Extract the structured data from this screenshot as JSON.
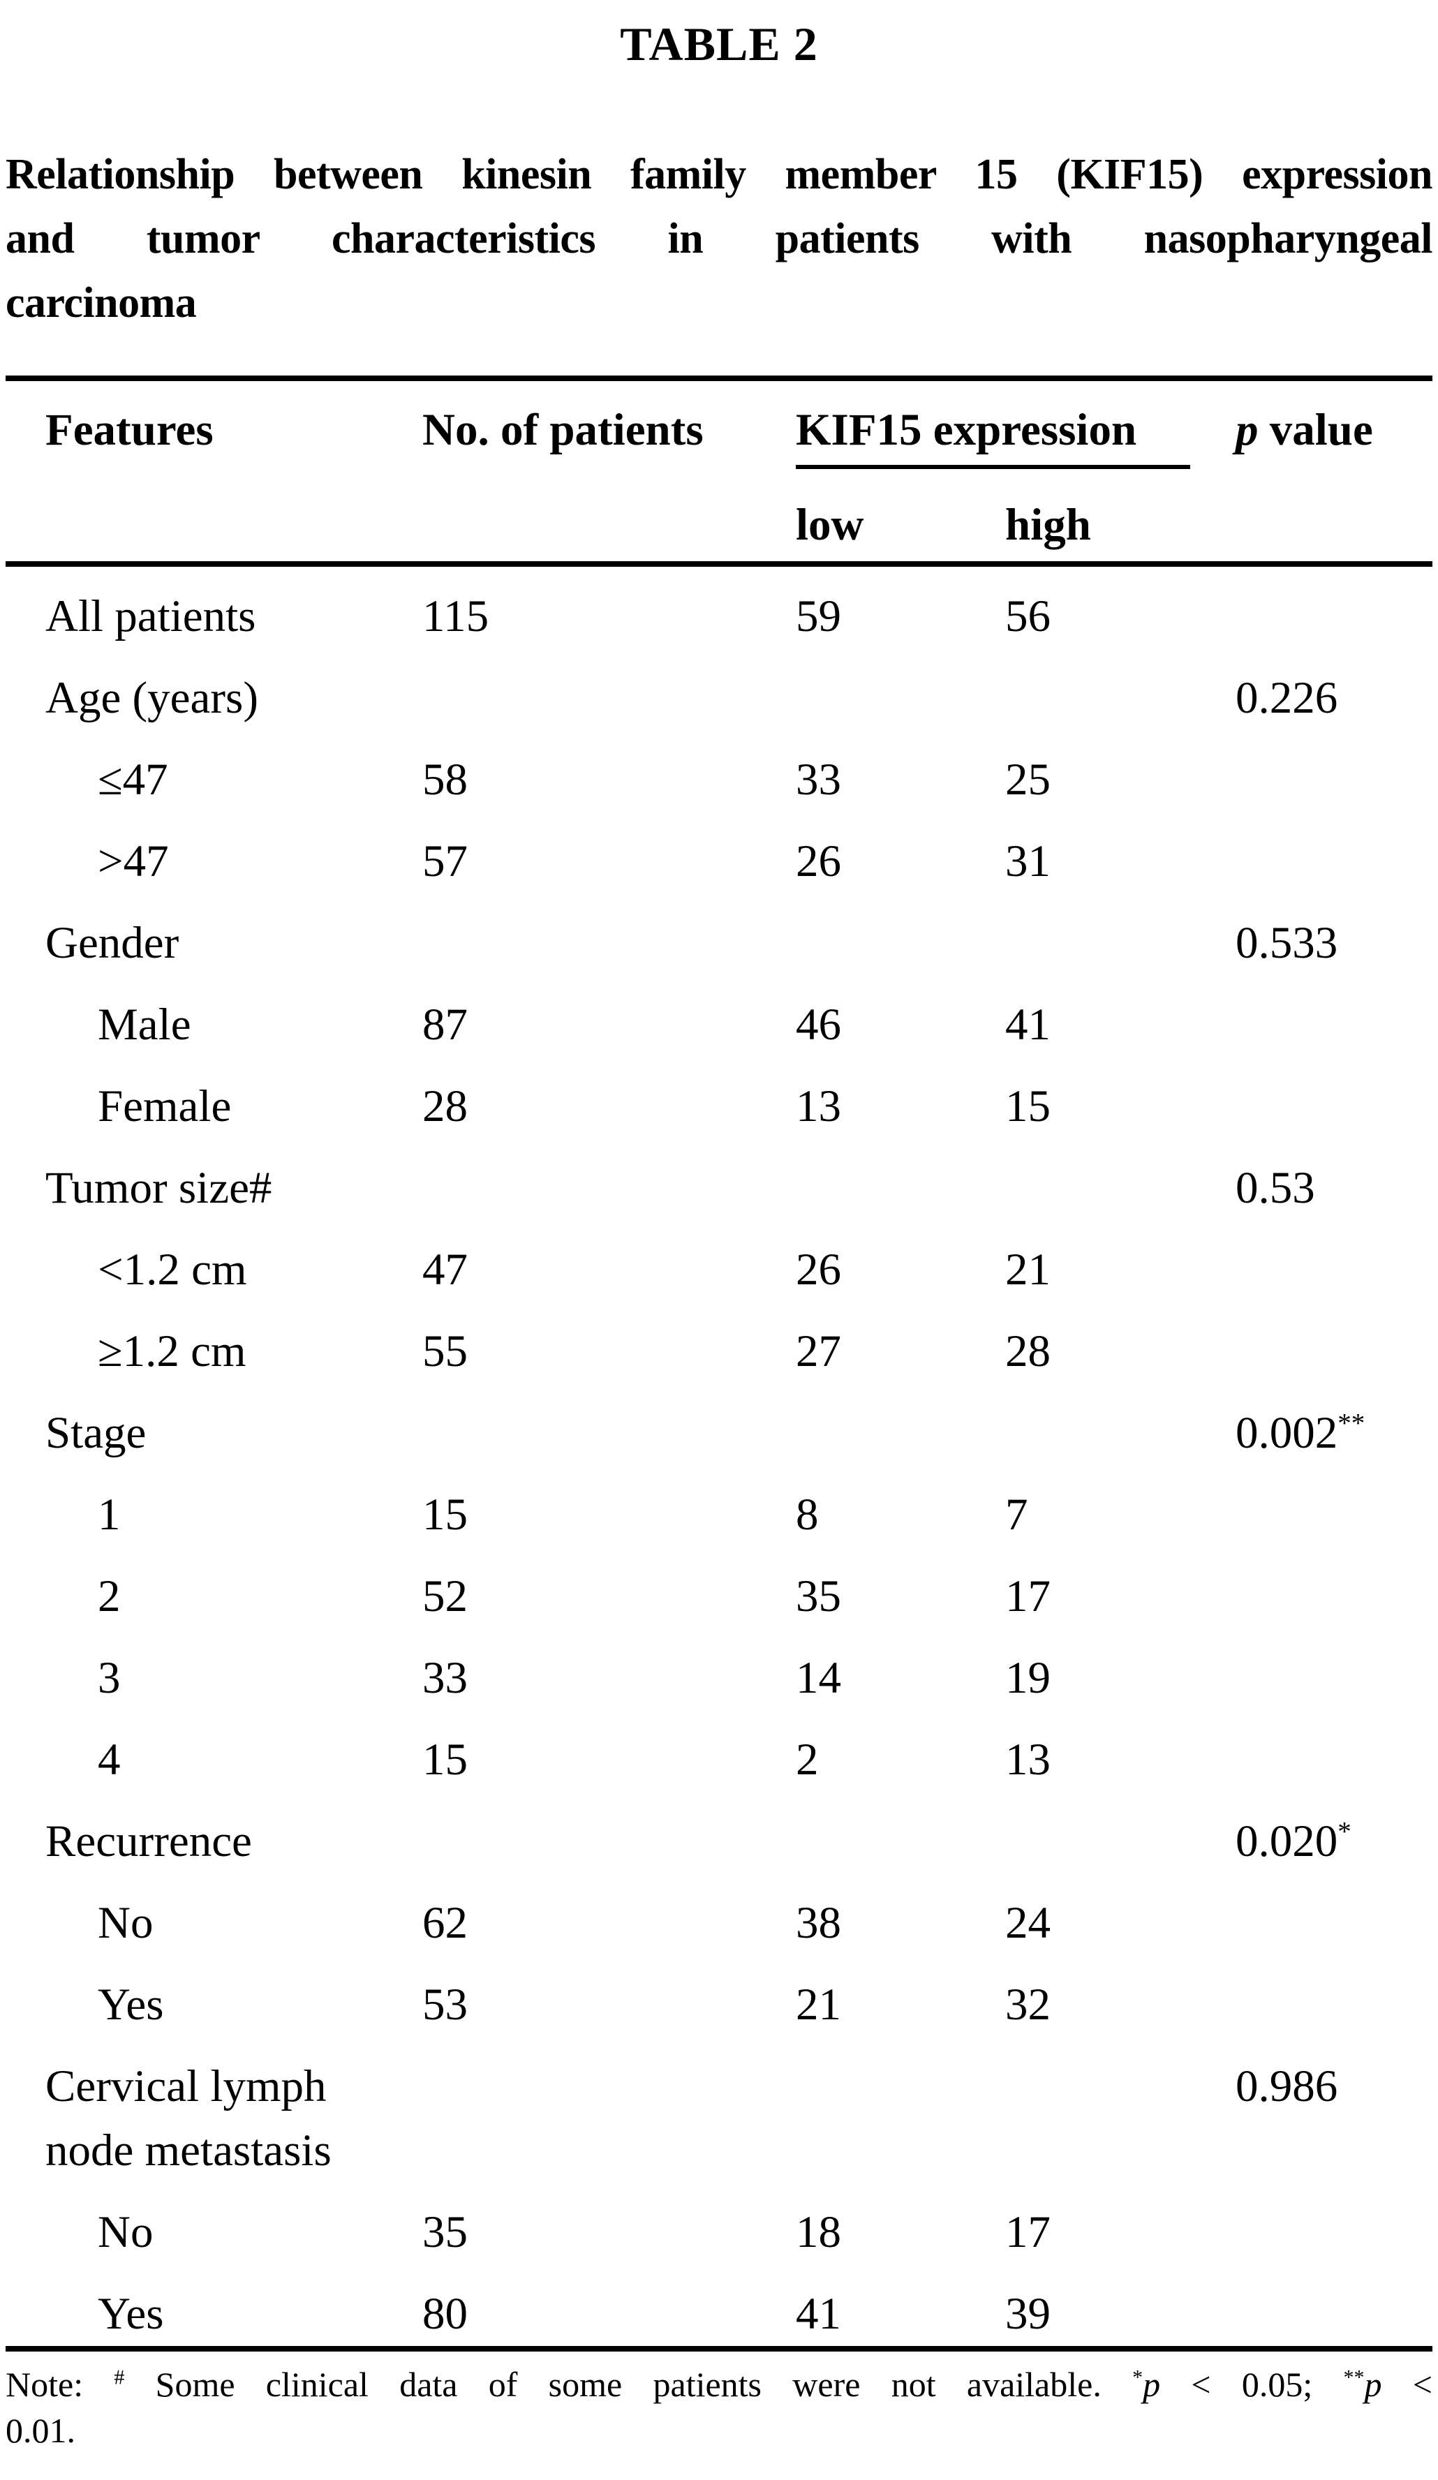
{
  "title": "TABLE 2",
  "caption": {
    "line1": "Relationship between kinesin family member 15 (KIF15) expression",
    "line2": "and tumor characteristics in patients with nasopharyngeal",
    "line3": "carcinoma"
  },
  "table": {
    "headers": {
      "features": "Features",
      "patients": "No. of patients",
      "kif15_group": "KIF15 expression",
      "p_italic": "p",
      "p_rest": " value",
      "low": "low",
      "high": "high"
    },
    "rows": [
      {
        "label": "All patients",
        "indent": false,
        "patients": "115",
        "low": "59",
        "high": "56",
        "p": "",
        "p_sup": ""
      },
      {
        "label": "Age (years)",
        "indent": false,
        "patients": "",
        "low": "",
        "high": "",
        "p": "0.226",
        "p_sup": ""
      },
      {
        "label": "≤47",
        "indent": true,
        "patients": "58",
        "low": "33",
        "high": "25",
        "p": "",
        "p_sup": ""
      },
      {
        "label": ">47",
        "indent": true,
        "patients": "57",
        "low": "26",
        "high": "31",
        "p": "",
        "p_sup": ""
      },
      {
        "label": "Gender",
        "indent": false,
        "patients": "",
        "low": "",
        "high": "",
        "p": "0.533",
        "p_sup": ""
      },
      {
        "label": "Male",
        "indent": true,
        "patients": "87",
        "low": "46",
        "high": "41",
        "p": "",
        "p_sup": ""
      },
      {
        "label": "Female",
        "indent": true,
        "patients": "28",
        "low": "13",
        "high": "15",
        "p": "",
        "p_sup": ""
      },
      {
        "label": "Tumor size#",
        "indent": false,
        "patients": "",
        "low": "",
        "high": "",
        "p": "0.53",
        "p_sup": ""
      },
      {
        "label": "<1.2 cm",
        "indent": true,
        "patients": "47",
        "low": "26",
        "high": "21",
        "p": "",
        "p_sup": ""
      },
      {
        "label": "≥1.2 cm",
        "indent": true,
        "patients": "55",
        "low": "27",
        "high": "28",
        "p": "",
        "p_sup": ""
      },
      {
        "label": "Stage",
        "indent": false,
        "patients": "",
        "low": "",
        "high": "",
        "p": "0.002",
        "p_sup": "**"
      },
      {
        "label": "1",
        "indent": true,
        "patients": "15",
        "low": "8",
        "high": "7",
        "p": "",
        "p_sup": ""
      },
      {
        "label": "2",
        "indent": true,
        "patients": "52",
        "low": "35",
        "high": "17",
        "p": "",
        "p_sup": ""
      },
      {
        "label": "3",
        "indent": true,
        "patients": "33",
        "low": "14",
        "high": "19",
        "p": "",
        "p_sup": ""
      },
      {
        "label": "4",
        "indent": true,
        "patients": "15",
        "low": "2",
        "high": "13",
        "p": "",
        "p_sup": ""
      },
      {
        "label": "Recurrence",
        "indent": false,
        "patients": "",
        "low": "",
        "high": "",
        "p": "0.020",
        "p_sup": "*"
      },
      {
        "label": "No",
        "indent": true,
        "patients": "62",
        "low": "38",
        "high": "24",
        "p": "",
        "p_sup": ""
      },
      {
        "label": "Yes",
        "indent": true,
        "patients": "53",
        "low": "21",
        "high": "32",
        "p": "",
        "p_sup": ""
      },
      {
        "label": "Cervical lymph node metastasis",
        "indent": false,
        "patients": "",
        "low": "",
        "high": "",
        "p": "0.986",
        "p_sup": ""
      },
      {
        "label": "No",
        "indent": true,
        "patients": "35",
        "low": "18",
        "high": "17",
        "p": "",
        "p_sup": ""
      },
      {
        "label": "Yes",
        "indent": true,
        "patients": "80",
        "low": "41",
        "high": "39",
        "p": "",
        "p_sup": ""
      }
    ]
  },
  "note": {
    "label": "Note: ",
    "hash_sup": "#",
    "body": " Some clinical data of some patients were not available. ",
    "star1": "*",
    "p1": "p",
    "seg1": " < 0.05; ",
    "star2": "**",
    "p2": "p",
    "seg2": " <",
    "line2": "0.01."
  },
  "chart_data": {
    "type": "table",
    "title": "TABLE 2",
    "caption": "Relationship between kinesin family member 15 (KIF15) expression and tumor characteristics in patients with nasopharyngeal carcinoma",
    "columns": [
      "Features",
      "No. of patients",
      "KIF15 expression low",
      "KIF15 expression high",
      "p value"
    ],
    "rows": [
      [
        "All patients",
        115,
        59,
        56,
        null
      ],
      [
        "Age (years)",
        null,
        null,
        null,
        "0.226"
      ],
      [
        "≤47",
        58,
        33,
        25,
        null
      ],
      [
        ">47",
        57,
        26,
        31,
        null
      ],
      [
        "Gender",
        null,
        null,
        null,
        "0.533"
      ],
      [
        "Male",
        87,
        46,
        41,
        null
      ],
      [
        "Female",
        28,
        13,
        15,
        null
      ],
      [
        "Tumor size#",
        null,
        null,
        null,
        "0.53"
      ],
      [
        "<1.2 cm",
        47,
        26,
        21,
        null
      ],
      [
        "≥1.2 cm",
        55,
        27,
        28,
        null
      ],
      [
        "Stage",
        null,
        null,
        null,
        "0.002**"
      ],
      [
        "1",
        15,
        8,
        7,
        null
      ],
      [
        "2",
        52,
        35,
        17,
        null
      ],
      [
        "3",
        33,
        14,
        19,
        null
      ],
      [
        "4",
        15,
        2,
        13,
        null
      ],
      [
        "Recurrence",
        null,
        null,
        null,
        "0.020*"
      ],
      [
        "No",
        62,
        38,
        24,
        null
      ],
      [
        "Yes",
        53,
        21,
        32,
        null
      ],
      [
        "Cervical lymph node metastasis",
        null,
        null,
        null,
        "0.986"
      ],
      [
        "No",
        35,
        18,
        17,
        null
      ],
      [
        "Yes",
        80,
        41,
        39,
        null
      ]
    ],
    "footnote": "Note: # Some clinical data of some patients were not available. *p < 0.05; **p < 0.01."
  }
}
